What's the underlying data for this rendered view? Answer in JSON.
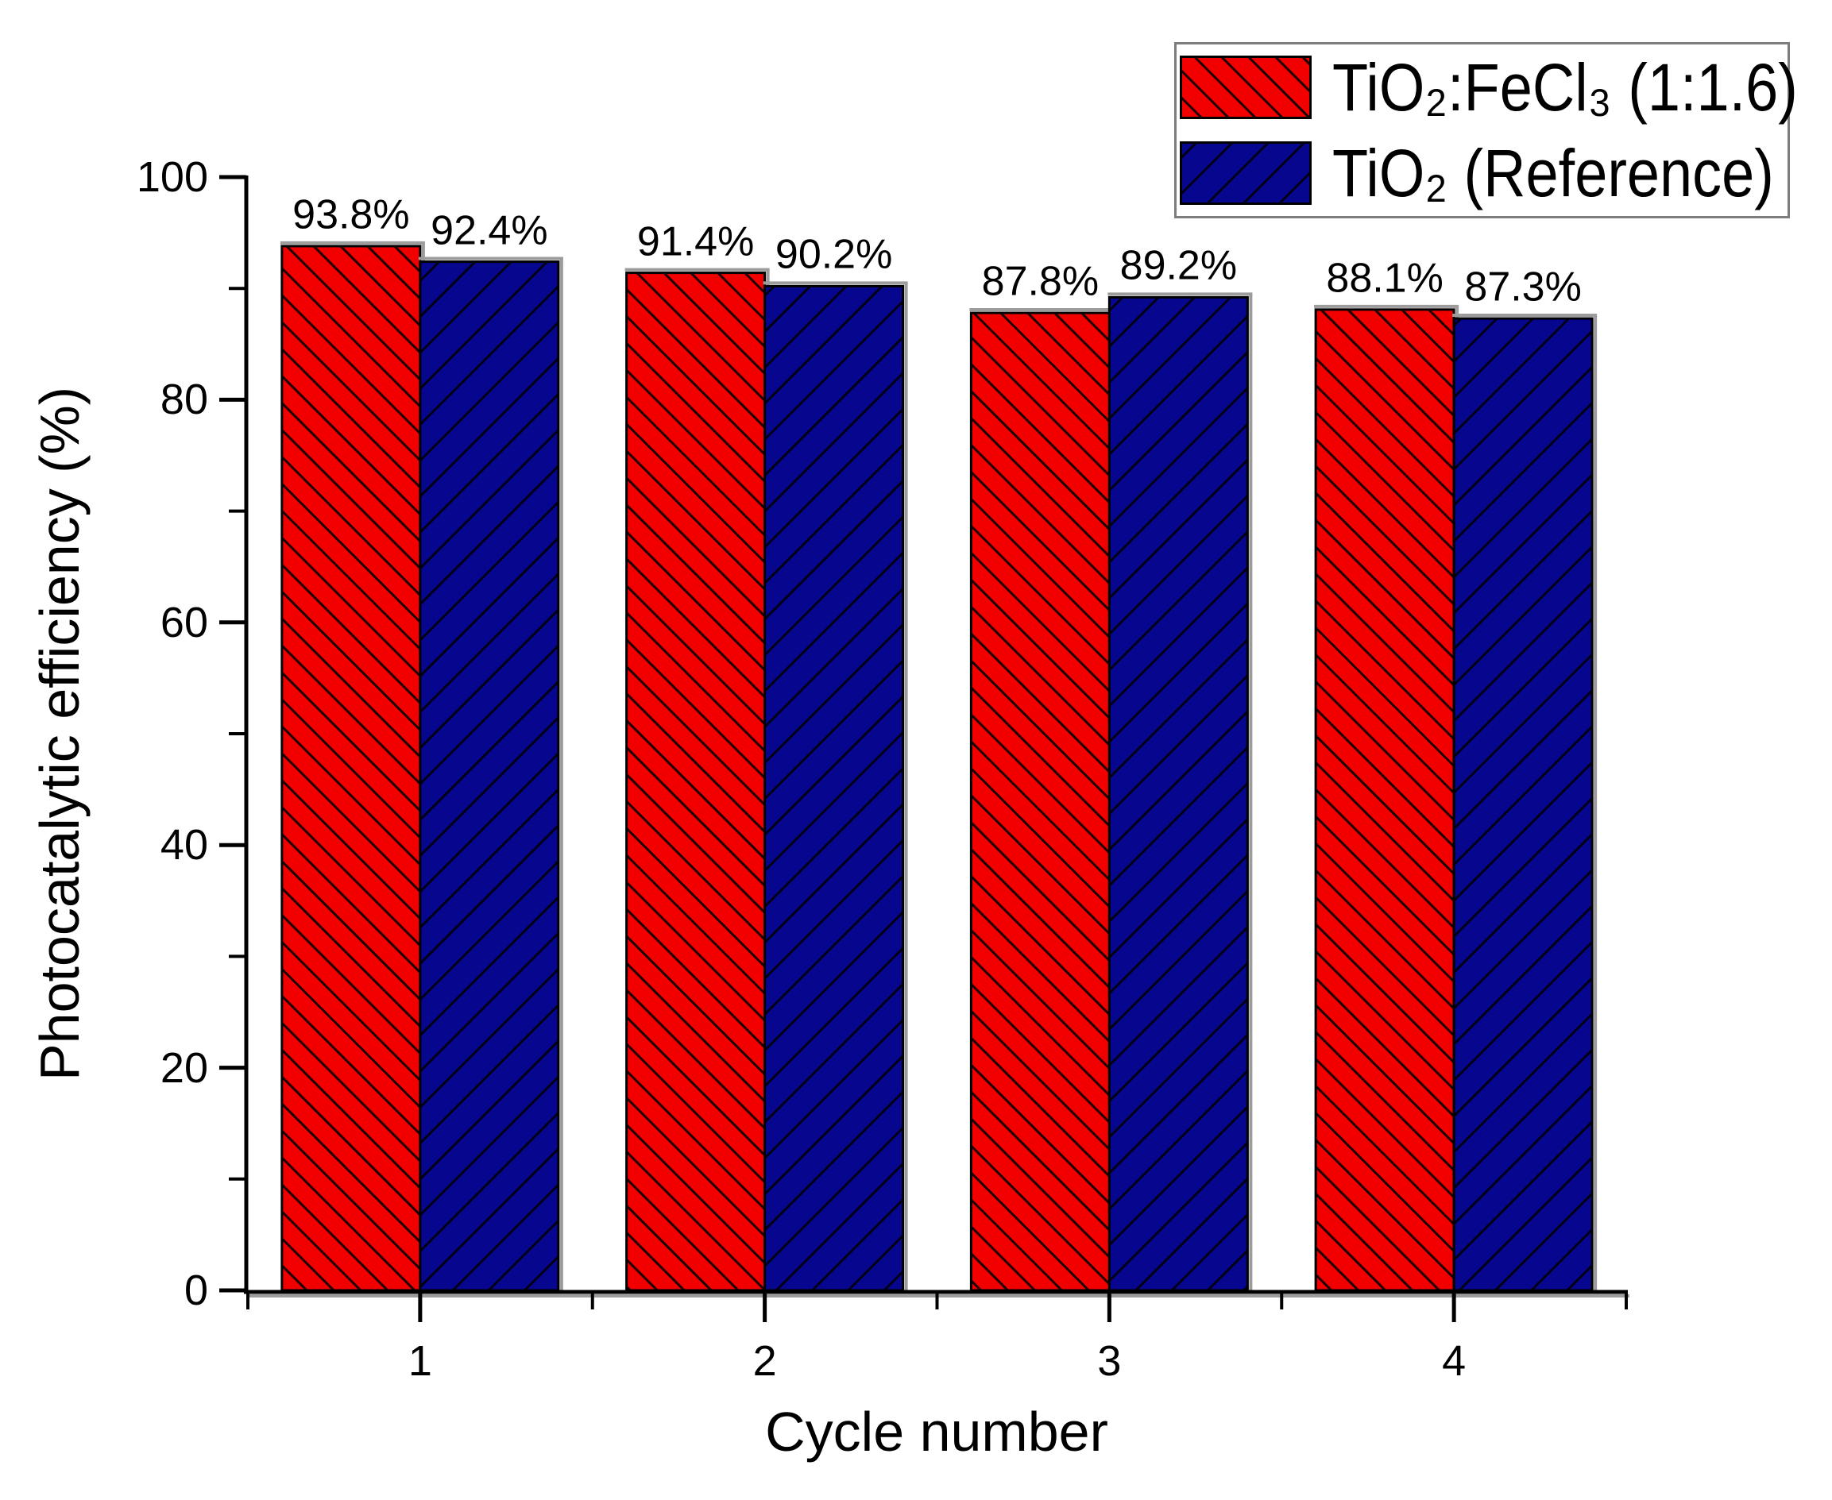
{
  "figure": {
    "background": "#ffffff",
    "axis_color": "#000000",
    "shadow_color": "#9c9c9c",
    "legend": {
      "border_color": "#7d7d7d",
      "items": [
        {
          "label": "TiO₂:FeCl₃ (1:1.6)",
          "color": "#f20000",
          "hatch": "/"
        },
        {
          "label": "TiO₂ (Reference)",
          "color": "#06068f",
          "hatch": "\\"
        }
      ]
    }
  },
  "chart_data": {
    "type": "bar",
    "title": "",
    "xlabel": "Cycle number",
    "ylabel": "Photocatalytic efficiency (%)",
    "categories": [
      "1",
      "2",
      "3",
      "4"
    ],
    "series": [
      {
        "name": "TiO₂:FeCl₃ (1:1.6)",
        "color": "#f20000",
        "hatch": "/",
        "values": [
          93.8,
          91.4,
          87.8,
          88.1
        ],
        "value_labels": [
          "93.8%",
          "91.4%",
          "87.8%",
          "88.1%"
        ]
      },
      {
        "name": "TiO₂ (Reference)",
        "color": "#06068f",
        "hatch": "\\",
        "values": [
          92.4,
          90.2,
          89.2,
          87.3
        ],
        "value_labels": [
          "92.4%",
          "90.2%",
          "89.2%",
          "87.3%"
        ]
      }
    ],
    "ylim": [
      0,
      100
    ],
    "y_major_ticks": [
      0,
      20,
      40,
      60,
      80,
      100
    ],
    "y_minor_ticks": [
      10,
      30,
      50,
      70,
      90
    ],
    "grid": "off",
    "legend_position": "top-right",
    "bar_value_suffix": "%"
  }
}
